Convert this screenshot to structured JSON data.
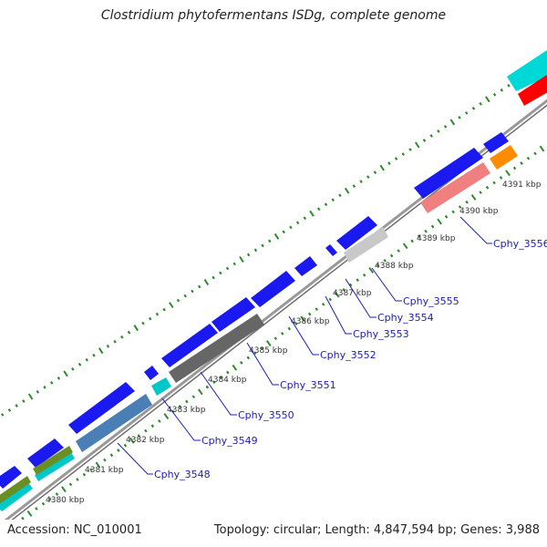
{
  "title": "Clostridium phytofermentans ISDg, complete genome",
  "footer": {
    "accession": "Accession: NC_010001",
    "summary": "Topology: circular; Length: 4,847,594 bp; Genes: 3,988"
  },
  "colors": {
    "backbone": "#8c8c8c",
    "dots": "#2e8b2e",
    "label": "#1c1cb8",
    "cds": "#1a1af0"
  },
  "ticks": [
    "4380 kbp",
    "4381 kbp",
    "4382 kbp",
    "4383 kbp",
    "4384 kbp",
    "4385 kbp",
    "4386 kbp",
    "4387 kbp",
    "4388 kbp",
    "4389 kbp",
    "4390 kbp",
    "4391 kbp"
  ],
  "gene_labels": [
    "Cphy_3548",
    "Cphy_3549",
    "Cphy_3550",
    "Cphy_3551",
    "Cphy_3552",
    "Cphy_3553",
    "Cphy_3554",
    "Cphy_3555",
    "Cphy_3556"
  ]
}
